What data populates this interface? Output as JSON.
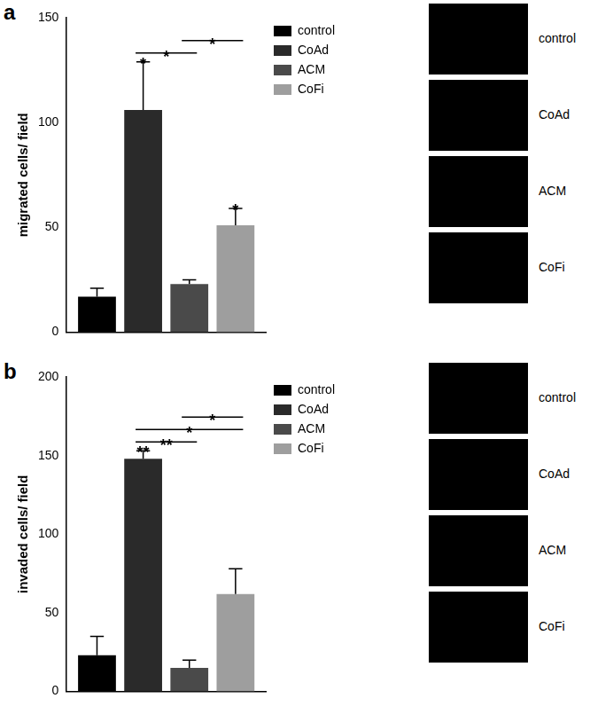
{
  "chart_data": [
    {
      "panel": "a",
      "type": "bar",
      "y_label": "migrated cells/ field",
      "categories": [
        null
      ],
      "series": [
        {
          "name": "control",
          "color": "#000000",
          "values": [
            17
          ],
          "errors": [
            4
          ]
        },
        {
          "name": "CoAd",
          "color": "#2a2a2a",
          "values": [
            106
          ],
          "errors": [
            23
          ]
        },
        {
          "name": "ACM",
          "color": "#4a4a4a",
          "values": [
            23
          ],
          "errors": [
            2
          ]
        },
        {
          "name": "CoFi",
          "color": "#9e9e9e",
          "values": [
            51
          ],
          "errors": [
            8
          ]
        }
      ],
      "annotations": [
        {
          "series": "CoAd",
          "text": "*"
        },
        {
          "series": "CoFi",
          "text": "*"
        }
      ],
      "comparisons": [
        {
          "between": [
            "CoAd",
            "ACM"
          ],
          "text": "*"
        },
        {
          "between": [
            "ACM",
            "CoFi"
          ],
          "text": "*"
        }
      ],
      "ylim": [
        0,
        150
      ],
      "yticks": [
        0,
        50,
        100,
        150
      ],
      "grid": false,
      "legend": "right",
      "tick_labels": "y",
      "micrographs": [
        "control",
        "CoAd",
        "ACM",
        "CoFi"
      ]
    },
    {
      "panel": "b",
      "type": "bar",
      "y_label": "invaded cells/ field",
      "categories": [
        null
      ],
      "series": [
        {
          "name": "control",
          "color": "#000000",
          "values": [
            23
          ],
          "errors": [
            12
          ]
        },
        {
          "name": "CoAd",
          "color": "#2a2a2a",
          "values": [
            148
          ],
          "errors": [
            5
          ]
        },
        {
          "name": "ACM",
          "color": "#4a4a4a",
          "values": [
            15
          ],
          "errors": [
            5
          ]
        },
        {
          "name": "CoFi",
          "color": "#9e9e9e",
          "values": [
            62
          ],
          "errors": [
            16
          ]
        }
      ],
      "annotations": [
        {
          "series": "CoAd",
          "text": "**"
        }
      ],
      "comparisons": [
        {
          "between": [
            "CoAd",
            "ACM"
          ],
          "text": "**"
        },
        {
          "between": [
            "CoAd",
            "CoFi"
          ],
          "text": "*"
        },
        {
          "between": [
            "ACM",
            "CoFi"
          ],
          "text": "*"
        }
      ],
      "ylim": [
        0,
        200
      ],
      "yticks": [
        0,
        50,
        100,
        150,
        200
      ],
      "grid": false,
      "legend": "right",
      "tick_labels": "y",
      "micrographs": [
        "control",
        "CoAd",
        "ACM",
        "CoFi"
      ]
    }
  ]
}
